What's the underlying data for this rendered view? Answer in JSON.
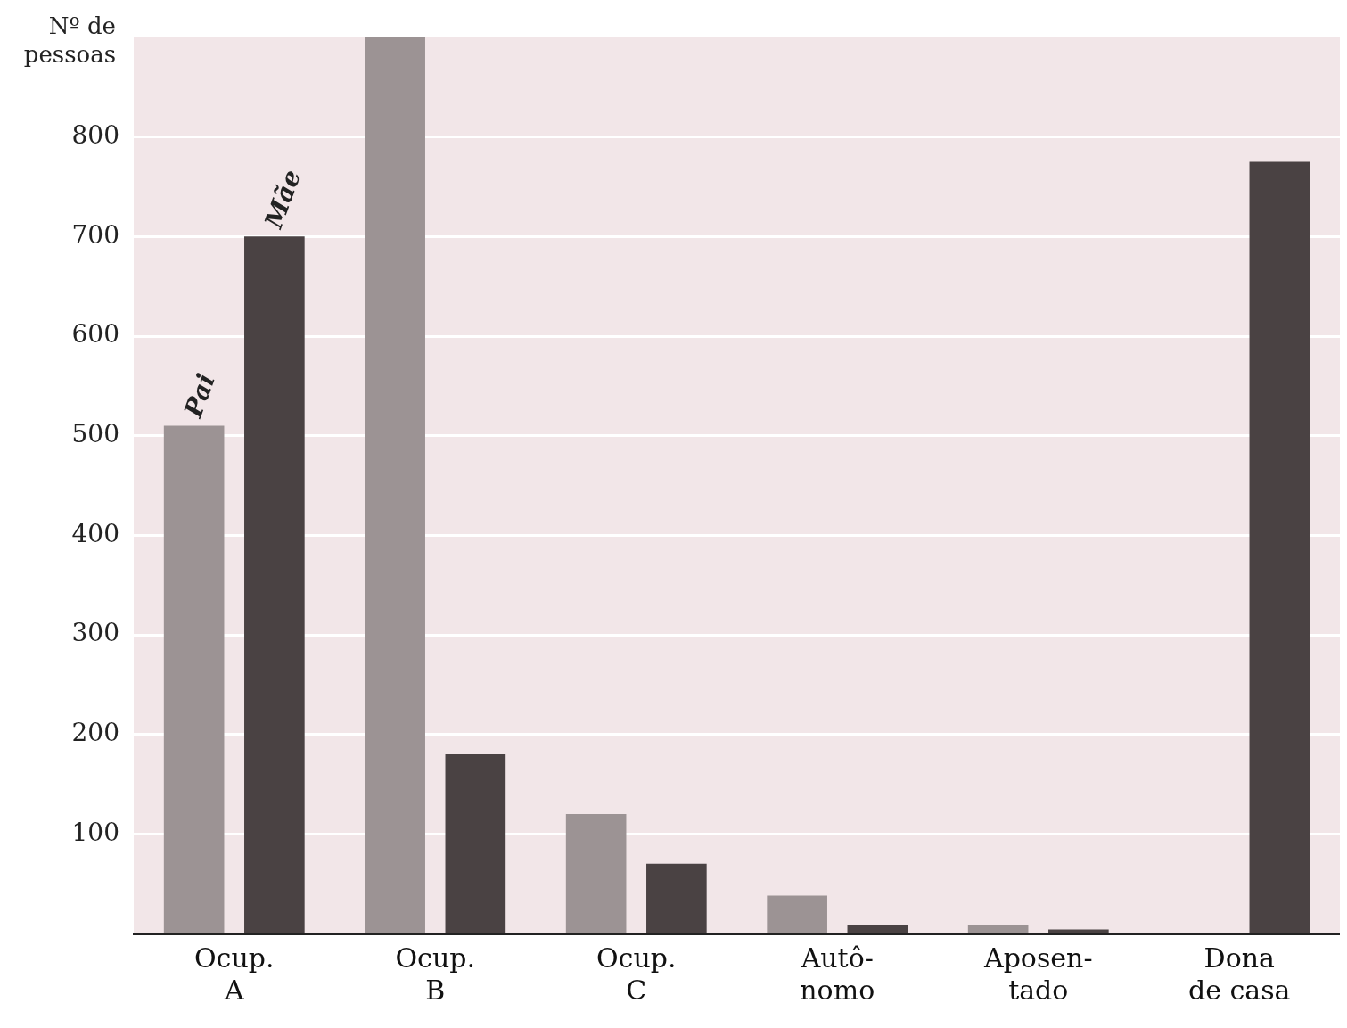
{
  "chart_data": {
    "type": "bar",
    "ylabel": "Nº de pessoas",
    "categories": [
      "Ocup.\nA",
      "Ocup.\nB",
      "Ocup.\nC",
      "Autô-\nnomo",
      "Aposen-\ntado",
      "Dona\nde casa"
    ],
    "series": [
      {
        "name": "Pai",
        "color": "#9c9394",
        "values": [
          510,
          900,
          120,
          38,
          8,
          null
        ]
      },
      {
        "name": "Mãe",
        "color": "#4a4243",
        "values": [
          700,
          180,
          70,
          8,
          4,
          775
        ]
      }
    ],
    "ylim": [
      0,
      900
    ],
    "yticks": [
      100,
      200,
      300,
      400,
      500,
      600,
      700,
      800
    ],
    "grid": "y",
    "legend": false
  }
}
